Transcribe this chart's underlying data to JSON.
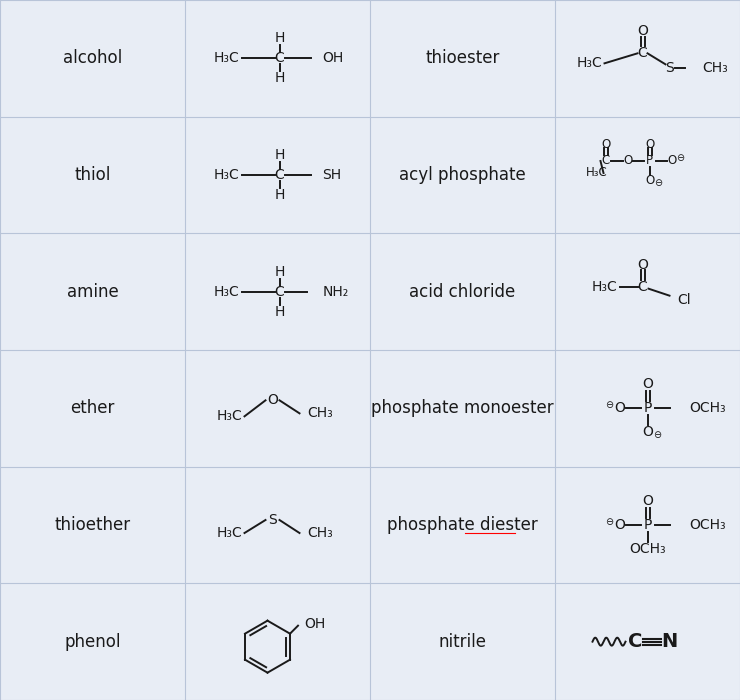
{
  "bg_color": "#e8edf5",
  "line_color": "#b8c4d8",
  "text_color": "#1a1a1a",
  "n_rows": 6,
  "n_cols": 4,
  "row_labels": [
    "alcohol",
    "thiol",
    "amine",
    "ether",
    "thioether",
    "phenol"
  ],
  "col_right_labels": [
    "thioester",
    "acyl phosphate",
    "acid chloride",
    "phosphate monoester",
    "phosphate diester",
    "nitrile"
  ],
  "figsize": [
    7.4,
    7.0
  ],
  "dpi": 100,
  "label_fontsize": 12,
  "struct_fontsize": 10,
  "small_fontsize": 8.5
}
